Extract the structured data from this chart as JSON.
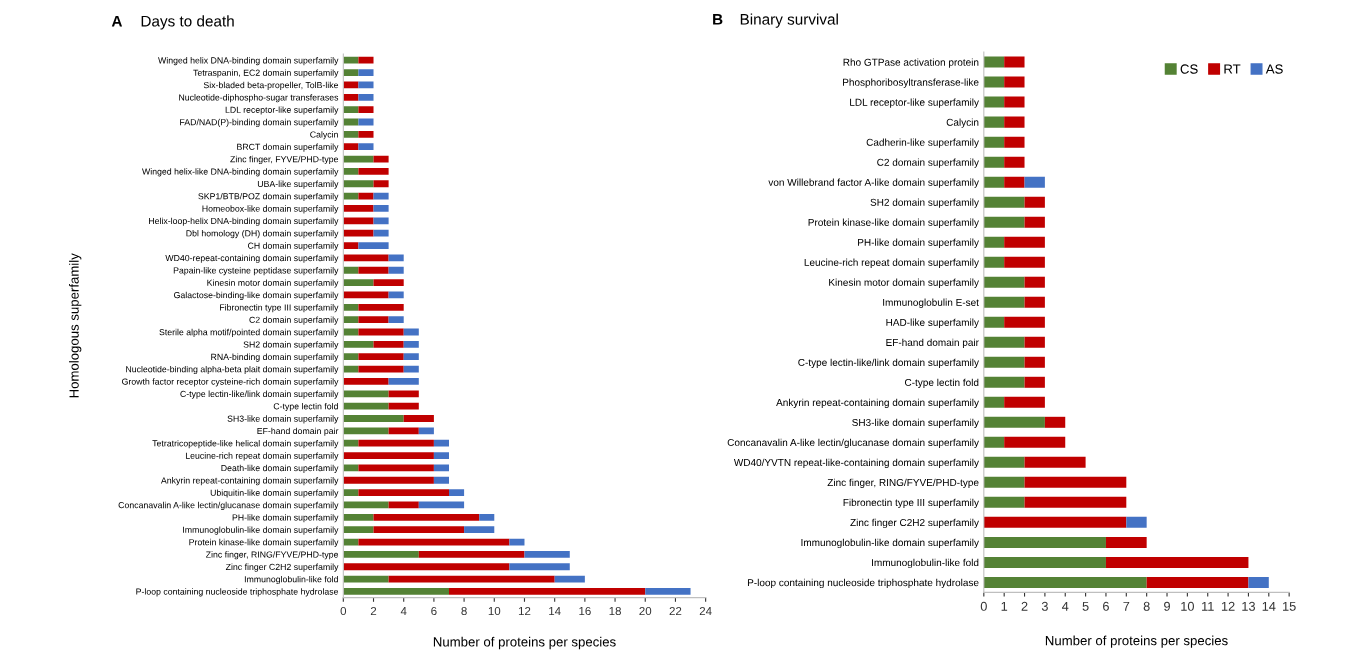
{
  "chart_data": [
    {
      "type": "bar",
      "orientation": "horizontal",
      "stacked": true,
      "title": "Days to death",
      "xlabel": "Number of proteins per species",
      "ylabel": "Homologous superfamily",
      "annotations": [
        "A"
      ],
      "legend": false,
      "grid": false,
      "categories": [
        "Winged helix DNA-binding domain superfamily",
        "Tetraspanin, EC2 domain superfamily",
        "Six-bladed beta-propeller, TolB-like",
        "Nucleotide-diphospho-sugar transferases",
        "LDL receptor-like superfamily",
        "FAD/NAD(P)-binding domain superfamily",
        "Calycin",
        "BRCT domain superfamily",
        "Zinc finger, FYVE/PHD-type",
        "Winged helix-like DNA-binding domain superfamily",
        "UBA-like superfamily",
        "SKP1/BTB/POZ domain superfamily",
        "Homeobox-like domain superfamily",
        "Helix-loop-helix DNA-binding domain superfamily",
        "Dbl homology (DH) domain superfamily",
        "CH domain superfamily",
        "WD40-repeat-containing domain superfamily",
        "Papain-like cysteine peptidase superfamily",
        "Kinesin motor domain superfamily",
        "Galactose-binding-like domain superfamily",
        "Fibronectin type III superfamily",
        "C2 domain superfamily",
        "Sterile alpha motif/pointed domain superfamily",
        "SH2 domain superfamily",
        "RNA-binding domain superfamily",
        "Nucleotide-binding alpha-beta plait domain superfamily",
        "Growth factor receptor cysteine-rich domain superfamily",
        "C-type lectin-like/link domain superfamily",
        "C-type lectin fold",
        "SH3-like domain superfamily",
        "EF-hand domain pair",
        "Tetratricopeptide-like helical domain superfamily",
        "Leucine-rich repeat domain superfamily",
        "Death-like domain superfamily",
        "Ankyrin repeat-containing domain superfamily",
        "Ubiquitin-like domain superfamily",
        "Concanavalin A-like lectin/glucanase domain superfamily",
        "PH-like domain superfamily",
        "Immunoglobulin-like domain superfamily",
        "Protein kinase-like domain superfamily",
        "Zinc finger, RING/FYVE/PHD-type",
        "Zinc finger C2H2 superfamily",
        "Immunoglobulin-like fold",
        "P-loop containing nucleoside triphosphate hydrolase"
      ],
      "xlim": [
        0,
        24
      ],
      "xticks": [
        0,
        2,
        4,
        6,
        8,
        10,
        12,
        14,
        16,
        18,
        20,
        22,
        24
      ],
      "series": [
        {
          "color": "#548235",
          "values": [
            1,
            1,
            0,
            0,
            1,
            1,
            1,
            0,
            2,
            1,
            2,
            1,
            0,
            0,
            0,
            0,
            0,
            1,
            2,
            0,
            1,
            1,
            1,
            2,
            1,
            1,
            0,
            3,
            3,
            4,
            3,
            1,
            0,
            1,
            0,
            1,
            3,
            2,
            2,
            1,
            5,
            0,
            3,
            7
          ]
        },
        {
          "color": "#c00000",
          "values": [
            1,
            0,
            1,
            1,
            1,
            0,
            1,
            1,
            1,
            2,
            1,
            1,
            2,
            2,
            2,
            1,
            3,
            2,
            2,
            3,
            3,
            2,
            3,
            2,
            3,
            3,
            3,
            2,
            2,
            2,
            2,
            5,
            6,
            5,
            6,
            6,
            2,
            7,
            6,
            10,
            7,
            11,
            11,
            13
          ]
        },
        {
          "color": "#4472c4",
          "values": [
            0,
            1,
            1,
            1,
            0,
            1,
            0,
            1,
            0,
            0,
            0,
            1,
            1,
            1,
            1,
            2,
            1,
            1,
            0,
            1,
            0,
            1,
            1,
            1,
            1,
            1,
            2,
            0,
            0,
            0,
            1,
            1,
            1,
            1,
            1,
            1,
            3,
            1,
            2,
            1,
            3,
            4,
            2,
            3
          ]
        }
      ]
    },
    {
      "type": "bar",
      "orientation": "horizontal",
      "stacked": true,
      "title": "Binary survival",
      "xlabel": "Number of proteins per species",
      "annotations": [
        "B"
      ],
      "legend": "top right",
      "grid": false,
      "categories": [
        "Rho GTPase activation protein",
        "Phosphoribosyltransferase-like",
        "LDL receptor-like superfamily",
        "Calycin",
        "Cadherin-like superfamily",
        "C2 domain superfamily",
        "von Willebrand factor A-like domain superfamily",
        "SH2 domain superfamily",
        "Protein kinase-like domain superfamily",
        "PH-like domain superfamily",
        "Leucine-rich repeat domain superfamily",
        "Kinesin motor domain superfamily",
        "Immunoglobulin E-set",
        "HAD-like superfamily",
        "EF-hand domain pair",
        "C-type lectin-like/link domain superfamily",
        "C-type lectin fold",
        "Ankyrin repeat-containing domain superfamily",
        "SH3-like domain superfamily",
        "Concanavalin A-like lectin/glucanase domain superfamily",
        "WD40/YVTN repeat-like-containing domain superfamily",
        "Zinc finger, RING/FYVE/PHD-type",
        "Fibronectin type III superfamily",
        "Zinc finger C2H2 superfamily",
        "Immunoglobulin-like domain superfamily",
        "Immunoglobulin-like fold",
        "P-loop containing nucleoside triphosphate hydrolase"
      ],
      "xlim": [
        0,
        15
      ],
      "xticks": [
        0,
        1,
        2,
        3,
        4,
        5,
        6,
        7,
        8,
        9,
        10,
        11,
        12,
        13,
        14,
        15
      ],
      "series": [
        {
          "name": "CS",
          "color": "#548235",
          "values": [
            1,
            1,
            1,
            1,
            1,
            1,
            1,
            2,
            2,
            1,
            1,
            2,
            2,
            1,
            2,
            2,
            2,
            1,
            3,
            1,
            2,
            2,
            2,
            0,
            6,
            6,
            8
          ]
        },
        {
          "name": "RT",
          "color": "#c00000",
          "values": [
            1,
            1,
            1,
            1,
            1,
            1,
            1,
            1,
            1,
            2,
            2,
            1,
            1,
            2,
            1,
            1,
            1,
            2,
            1,
            3,
            3,
            5,
            5,
            7,
            2,
            7,
            5
          ]
        },
        {
          "name": "AS",
          "color": "#4472c4",
          "values": [
            0,
            0,
            0,
            0,
            0,
            0,
            1,
            0,
            0,
            0,
            0,
            0,
            0,
            0,
            0,
            0,
            0,
            0,
            0,
            0,
            0,
            0,
            0,
            1,
            0,
            0,
            1
          ]
        }
      ]
    }
  ]
}
